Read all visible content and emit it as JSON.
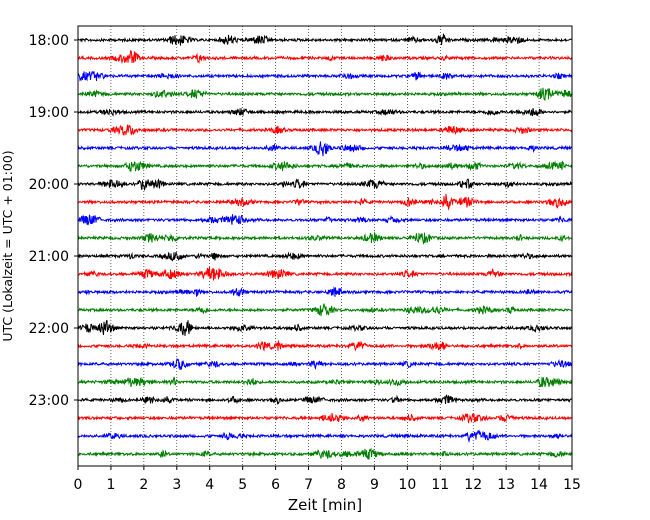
{
  "chart_data": {
    "type": "line",
    "title": "",
    "xlabel": "Zeit  [min]",
    "ylabel": "UTC (Lokalzeit = UTC + 01:00)",
    "xlim": [
      0,
      15
    ],
    "x_ticks": [
      "0",
      "1",
      "2",
      "3",
      "4",
      "5",
      "6",
      "7",
      "8",
      "9",
      "10",
      "11",
      "12",
      "13",
      "14",
      "15"
    ],
    "y_ticks": [
      "18:00",
      "19:00",
      "20:00",
      "21:00",
      "22:00",
      "23:00"
    ],
    "grid": "vertical dotted lines at each minute",
    "legend": "none",
    "trace_colors": [
      "#000000",
      "#ff0000",
      "#0000ff",
      "#008000"
    ],
    "traces": [
      "18:00",
      "18:15",
      "18:30",
      "18:45",
      "19:00",
      "19:15",
      "19:30",
      "19:45",
      "20:00",
      "20:15",
      "20:30",
      "20:45",
      "21:00",
      "21:15",
      "21:30",
      "21:45",
      "22:00",
      "22:15",
      "22:30",
      "22:45",
      "23:00",
      "23:15",
      "23:30",
      "23:45"
    ]
  }
}
